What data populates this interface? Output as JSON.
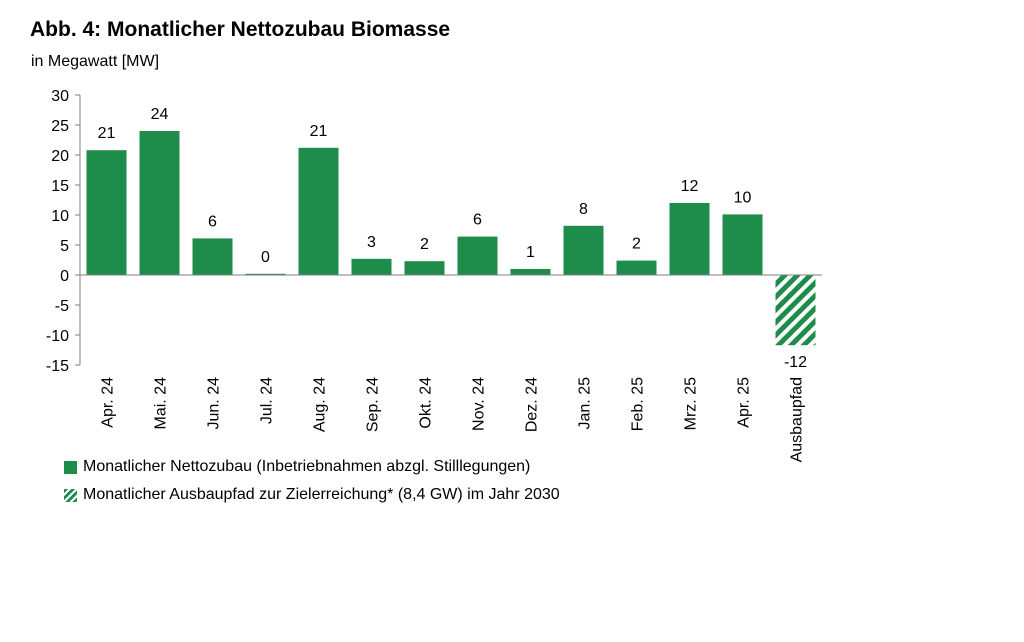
{
  "header": {
    "title": "Abb. 4: Monatlicher Nettozubau Biomasse",
    "subtitle": "in Megawatt [MW]"
  },
  "legend": {
    "actual": "Monatlicher Nettozubau (Inbetriebnahmen abzgl. Stilllegungen)",
    "target": "Monatlicher Ausbaupfad zur Zielerreichung* (8,4 GW) im Jahr 2030"
  },
  "colors": {
    "bar": "#1e8c4b",
    "axis": "#7f7f7f"
  },
  "chart_data": {
    "type": "bar",
    "title": "Abb. 4: Monatlicher Nettozubau Biomasse",
    "ylabel": "in Megawatt [MW]",
    "ylim": [
      -15,
      30
    ],
    "yticks": [
      30,
      25,
      20,
      15,
      10,
      5,
      0,
      -5,
      -10,
      -15
    ],
    "grid": false,
    "legend_position": "bottom-left",
    "categories": [
      "Apr. 24",
      "Mai. 24",
      "Jun. 24",
      "Jul. 24",
      "Aug. 24",
      "Sep. 24",
      "Okt. 24",
      "Nov. 24",
      "Dez. 24",
      "Jan. 25",
      "Feb. 25",
      "Mrz. 25",
      "Apr. 25",
      "Ausbaupfad"
    ],
    "values": [
      20.8,
      24.0,
      6.1,
      0.2,
      21.2,
      2.7,
      2.3,
      6.4,
      1.0,
      8.2,
      2.4,
      12.0,
      10.1,
      -11.7
    ],
    "labels": [
      "21",
      "24",
      "6",
      "0",
      "21",
      "3",
      "2",
      "6",
      "1",
      "8",
      "2",
      "12",
      "10",
      "-12"
    ],
    "series": [
      {
        "name": "Monatlicher Nettozubau (Inbetriebnahmen abzgl. Stilllegungen)",
        "categories": [
          "Apr. 24",
          "Mai. 24",
          "Jun. 24",
          "Jul. 24",
          "Aug. 24",
          "Sep. 24",
          "Okt. 24",
          "Nov. 24",
          "Dez. 24",
          "Jan. 25",
          "Feb. 25",
          "Mrz. 25",
          "Apr. 25"
        ]
      },
      {
        "name": "Monatlicher Ausbaupfad zur Zielerreichung* (8,4 GW) im Jahr 2030",
        "categories": [
          "Ausbaupfad"
        ]
      }
    ]
  }
}
